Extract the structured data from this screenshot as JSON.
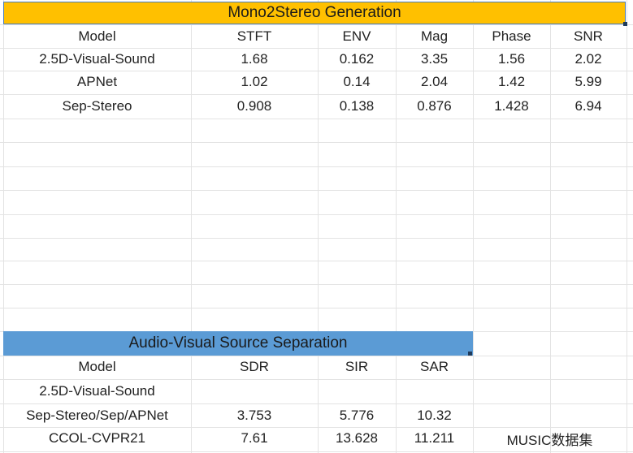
{
  "table1": {
    "title": "Mono2Stereo Generation",
    "headers": [
      "Model",
      "STFT",
      "ENV",
      "Mag",
      "Phase",
      "SNR"
    ],
    "rows": [
      [
        "2.5D-Visual-Sound",
        "1.68",
        "0.162",
        "3.35",
        "1.56",
        "2.02"
      ],
      [
        "APNet",
        "1.02",
        "0.14",
        "2.04",
        "1.42",
        "5.99"
      ],
      [
        "Sep-Stereo",
        "0.908",
        "0.138",
        "0.876",
        "1.428",
        "6.94"
      ]
    ]
  },
  "table2": {
    "title": "Audio-Visual Source Separation",
    "headers": [
      "Model",
      "SDR",
      "SIR",
      "SAR"
    ],
    "rows": [
      [
        "2.5D-Visual-Sound",
        "",
        "",
        ""
      ],
      [
        "Sep-Stereo/Sep/APNet",
        "3.753",
        "5.776",
        "10.32"
      ],
      [
        "CCOL-CVPR21",
        "7.61",
        "13.628",
        "11.211"
      ]
    ],
    "note": "MUSIC数据集"
  },
  "colors": {
    "header1_bg": "#ffc000",
    "header2_bg": "#5b9bd5",
    "selection_border": "#4a7ebb",
    "gridline": "#e3e3e3"
  }
}
